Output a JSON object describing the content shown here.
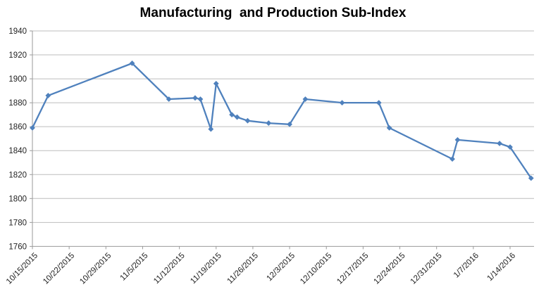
{
  "chart_data": {
    "type": "line",
    "title": "Manufacturing  and Production Sub-Index",
    "xlabel": "",
    "ylabel": "",
    "legend": "none",
    "grid": "horizontal",
    "ylim": [
      1760,
      1940
    ],
    "y_tick_step": 20,
    "y_ticks": [
      1760,
      1780,
      1800,
      1820,
      1840,
      1860,
      1880,
      1900,
      1920,
      1940
    ],
    "x_tick_labels": [
      "10/15/2015",
      "10/22/2015",
      "10/29/2015",
      "11/5/2015",
      "11/12/2015",
      "11/19/2015",
      "11/26/2015",
      "12/3/2015",
      "12/10/2015",
      "12/17/2015",
      "12/24/2015",
      "12/31/2015",
      "1/7/2016",
      "1/14/2016"
    ],
    "x_tick_interval_days": 7,
    "xlim": [
      "10/15/2015",
      "1/19/2016"
    ],
    "points": [
      {
        "date": "10/15/2015",
        "value": 1859
      },
      {
        "date": "10/18/2015",
        "value": 1886
      },
      {
        "date": "11/3/2015",
        "value": 1913
      },
      {
        "date": "11/10/2015",
        "value": 1883
      },
      {
        "date": "11/15/2015",
        "value": 1884
      },
      {
        "date": "11/16/2015",
        "value": 1883
      },
      {
        "date": "11/18/2015",
        "value": 1858
      },
      {
        "date": "11/19/2015",
        "value": 1896
      },
      {
        "date": "11/22/2015",
        "value": 1870
      },
      {
        "date": "11/23/2015",
        "value": 1868
      },
      {
        "date": "11/25/2015",
        "value": 1865
      },
      {
        "date": "11/29/2015",
        "value": 1863
      },
      {
        "date": "12/3/2015",
        "value": 1862
      },
      {
        "date": "12/6/2015",
        "value": 1883
      },
      {
        "date": "12/13/2015",
        "value": 1880
      },
      {
        "date": "12/20/2015",
        "value": 1880
      },
      {
        "date": "12/22/2015",
        "value": 1859
      },
      {
        "date": "1/3/2016",
        "value": 1833
      },
      {
        "date": "1/4/2016",
        "value": 1849
      },
      {
        "date": "1/12/2016",
        "value": 1846
      },
      {
        "date": "1/14/2016",
        "value": 1843
      },
      {
        "date": "1/18/2016",
        "value": 1817
      }
    ],
    "marker": "diamond",
    "colors": {
      "line": "#4F81BD",
      "marker": "#4F81BD",
      "gridline": "#BEBEBE",
      "axis": "#9A9A9A",
      "tick_label_text": "#1f1f1f",
      "title_text": "#000000",
      "background": "#ffffff"
    }
  }
}
